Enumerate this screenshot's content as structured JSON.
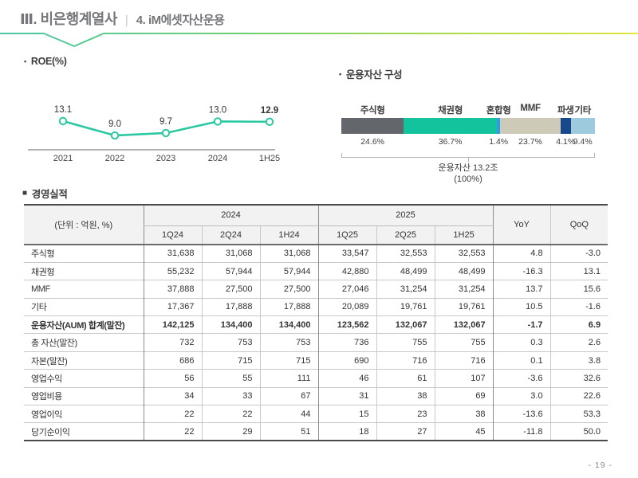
{
  "header": {
    "section_title": "Ⅲ. 비은행계열사",
    "divider": "|",
    "page_title": "4. iM에셋자산운용",
    "line_colors": [
      "#49c6a6",
      "#6fce71",
      "#a5da48",
      "#e0e53c"
    ]
  },
  "roe_chart": {
    "bullet": "•",
    "title": "ROE(%)",
    "chart_data": {
      "type": "line",
      "categories": [
        "2021",
        "2022",
        "2023",
        "2024",
        "1H25"
      ],
      "values": [
        13.1,
        9.0,
        9.7,
        13.0,
        12.9
      ],
      "line_color": "#2bc8a2",
      "marker": "open-circle",
      "last_value_bold": true
    }
  },
  "aum_chart": {
    "bullet": "•",
    "title": "운용자산 구성",
    "chart_data": {
      "type": "stacked-bar",
      "segments": [
        {
          "label": "주식형",
          "pct": 24.6,
          "pct_label": "24.6%",
          "color": "#63666a"
        },
        {
          "label": "채권형",
          "pct": 36.7,
          "pct_label": "36.7%",
          "color": "#12c39e"
        },
        {
          "label": "혼합형",
          "pct": 1.4,
          "pct_label": "1.4%",
          "color": "#2f9ce8"
        },
        {
          "label": "MMF",
          "pct": 23.7,
          "pct_label": "23.7%",
          "color": "#cecab8"
        },
        {
          "label": "파생",
          "pct": 4.1,
          "pct_label": "4.1%",
          "color": "#17498a"
        },
        {
          "label": "기타",
          "pct": 9.4,
          "pct_label": "9.4%",
          "color": "#9ecade"
        }
      ],
      "note_line1": "운용자산 13.2조",
      "note_line2": "(100%)"
    }
  },
  "table": {
    "bullet": "■",
    "title": "경영실적",
    "unit_label": "(단위 : 억원, %)",
    "group_headers": [
      "2024",
      "2025"
    ],
    "sub_headers": [
      "1Q24",
      "2Q24",
      "1H24",
      "1Q25",
      "2Q25",
      "1H25"
    ],
    "yoy_label": "YoY",
    "qoq_label": "QoQ",
    "rows": [
      {
        "label": "주식형",
        "bold": false,
        "values": [
          "31,638",
          "31,068",
          "31,068",
          "33,547",
          "32,553",
          "32,553",
          "4.8",
          "-3.0"
        ]
      },
      {
        "label": "채권형",
        "bold": false,
        "values": [
          "55,232",
          "57,944",
          "57,944",
          "42,880",
          "48,499",
          "48,499",
          "-16.3",
          "13.1"
        ]
      },
      {
        "label": "MMF",
        "bold": false,
        "values": [
          "37,888",
          "27,500",
          "27,500",
          "27,046",
          "31,254",
          "31,254",
          "13.7",
          "15.6"
        ]
      },
      {
        "label": "기타",
        "bold": false,
        "values": [
          "17,367",
          "17,888",
          "17,888",
          "20,089",
          "19,761",
          "19,761",
          "10.5",
          "-1.6"
        ]
      },
      {
        "label": "운용자산(AUM) 합계(말잔)",
        "bold": true,
        "values": [
          "142,125",
          "134,400",
          "134,400",
          "123,562",
          "132,067",
          "132,067",
          "-1.7",
          "6.9"
        ]
      },
      {
        "label": "총 자산(말잔)",
        "bold": false,
        "values": [
          "732",
          "753",
          "753",
          "736",
          "755",
          "755",
          "0.3",
          "2.6"
        ]
      },
      {
        "label": "자본(말잔)",
        "bold": false,
        "values": [
          "686",
          "715",
          "715",
          "690",
          "716",
          "716",
          "0.1",
          "3.8"
        ]
      },
      {
        "label": "영업수익",
        "bold": false,
        "values": [
          "56",
          "55",
          "111",
          "46",
          "61",
          "107",
          "-3.6",
          "32.6"
        ]
      },
      {
        "label": "영업비용",
        "bold": false,
        "values": [
          "34",
          "33",
          "67",
          "31",
          "38",
          "69",
          "3.0",
          "22.6"
        ]
      },
      {
        "label": "영업이익",
        "bold": false,
        "values": [
          "22",
          "22",
          "44",
          "15",
          "23",
          "38",
          "-13.6",
          "53.3"
        ]
      },
      {
        "label": "당기순이익",
        "bold": false,
        "values": [
          "22",
          "29",
          "51",
          "18",
          "27",
          "45",
          "-11.8",
          "50.0"
        ]
      }
    ]
  },
  "footer": {
    "page_number": "- 19 -"
  }
}
